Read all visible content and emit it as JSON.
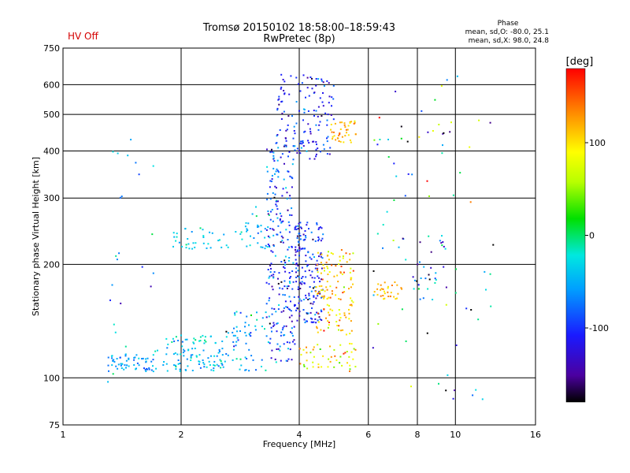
{
  "chart_data": {
    "type": "scatter",
    "title": "Tromsø 20150102 18:58:00–18:59:43",
    "subtitle": "RwPretec (8p)",
    "status_label": "HV Off",
    "phase_info": {
      "heading": "Phase",
      "line1": "mean, sd,O: -80.0, 25.1",
      "line2": "mean, sd,X:  98.0, 24.8"
    },
    "xlabel": "Frequency [MHz]",
    "ylabel": "Stationary phase Virtual Height [km]",
    "x_scale": "log2",
    "y_scale": "log",
    "xlim": [
      1,
      16
    ],
    "ylim": [
      75,
      750
    ],
    "x_ticks": [
      1,
      2,
      4,
      6,
      8,
      10,
      16
    ],
    "x_tick_labels": [
      "1",
      "2",
      "4",
      "6",
      "8",
      "10",
      "16"
    ],
    "y_ticks": [
      75,
      100,
      200,
      300,
      400,
      500,
      600,
      750
    ],
    "y_tick_labels": [
      "75",
      "100",
      "200",
      "300",
      "400",
      "500",
      "600",
      "750"
    ],
    "grid": true,
    "colorbar": {
      "label": "[deg]",
      "range": [
        -180,
        180
      ],
      "ticks": [
        100,
        0,
        -100
      ],
      "tick_labels": [
        "100",
        "0",
        "-100"
      ]
    },
    "clusters": [
      {
        "x_range": [
          1.3,
          1.7
        ],
        "y_range": [
          104,
          116
        ],
        "phase_mean": -60,
        "phase_sd": 20,
        "count": 60
      },
      {
        "x_range": [
          1.7,
          2.6
        ],
        "y_range": [
          104,
          130
        ],
        "phase_mean": -40,
        "phase_sd": 25,
        "count": 110
      },
      {
        "x_range": [
          2.6,
          3.3
        ],
        "y_range": [
          104,
          150
        ],
        "phase_mean": -55,
        "phase_sd": 30,
        "count": 60
      },
      {
        "x_range": [
          1.9,
          2.9
        ],
        "y_range": [
          220,
          250
        ],
        "phase_mean": -35,
        "phase_sd": 15,
        "count": 40
      },
      {
        "x_range": [
          2.9,
          3.4
        ],
        "y_range": [
          220,
          290
        ],
        "phase_mean": -45,
        "phase_sd": 25,
        "count": 30
      },
      {
        "x_range": [
          3.3,
          3.9
        ],
        "y_range": [
          110,
          420
        ],
        "phase_mean": -95,
        "phase_sd": 35,
        "count": 240
      },
      {
        "x_range": [
          3.9,
          4.6
        ],
        "y_range": [
          140,
          260
        ],
        "phase_mean": -110,
        "phase_sd": 30,
        "count": 180
      },
      {
        "x_range": [
          3.5,
          4.9
        ],
        "y_range": [
          380,
          640
        ],
        "phase_mean": -105,
        "phase_sd": 25,
        "count": 140
      },
      {
        "x_range": [
          4.4,
          5.5
        ],
        "y_range": [
          130,
          220
        ],
        "phase_mean": 110,
        "phase_sd": 30,
        "count": 130
      },
      {
        "x_range": [
          4.8,
          5.6
        ],
        "y_range": [
          420,
          480
        ],
        "phase_mean": 115,
        "phase_sd": 20,
        "count": 40
      },
      {
        "x_range": [
          4.0,
          5.6
        ],
        "y_range": [
          104,
          125
        ],
        "phase_mean": 90,
        "phase_sd": 35,
        "count": 50
      },
      {
        "x_range": [
          6.2,
          7.3
        ],
        "y_range": [
          160,
          180
        ],
        "phase_mean": 115,
        "phase_sd": 15,
        "count": 30
      },
      {
        "x_range": [
          7.7,
          9.5
        ],
        "y_range": [
          160,
          240
        ],
        "phase_mean": -90,
        "phase_sd": 60,
        "count": 30
      },
      {
        "x_range": [
          6.0,
          12.5
        ],
        "y_range": [
          85,
          650
        ],
        "phase_mean": -20,
        "phase_sd": 100,
        "count": 80
      },
      {
        "x_range": [
          1.3,
          1.7
        ],
        "y_range": [
          95,
          430
        ],
        "phase_mean": -60,
        "phase_sd": 40,
        "count": 25
      }
    ]
  }
}
